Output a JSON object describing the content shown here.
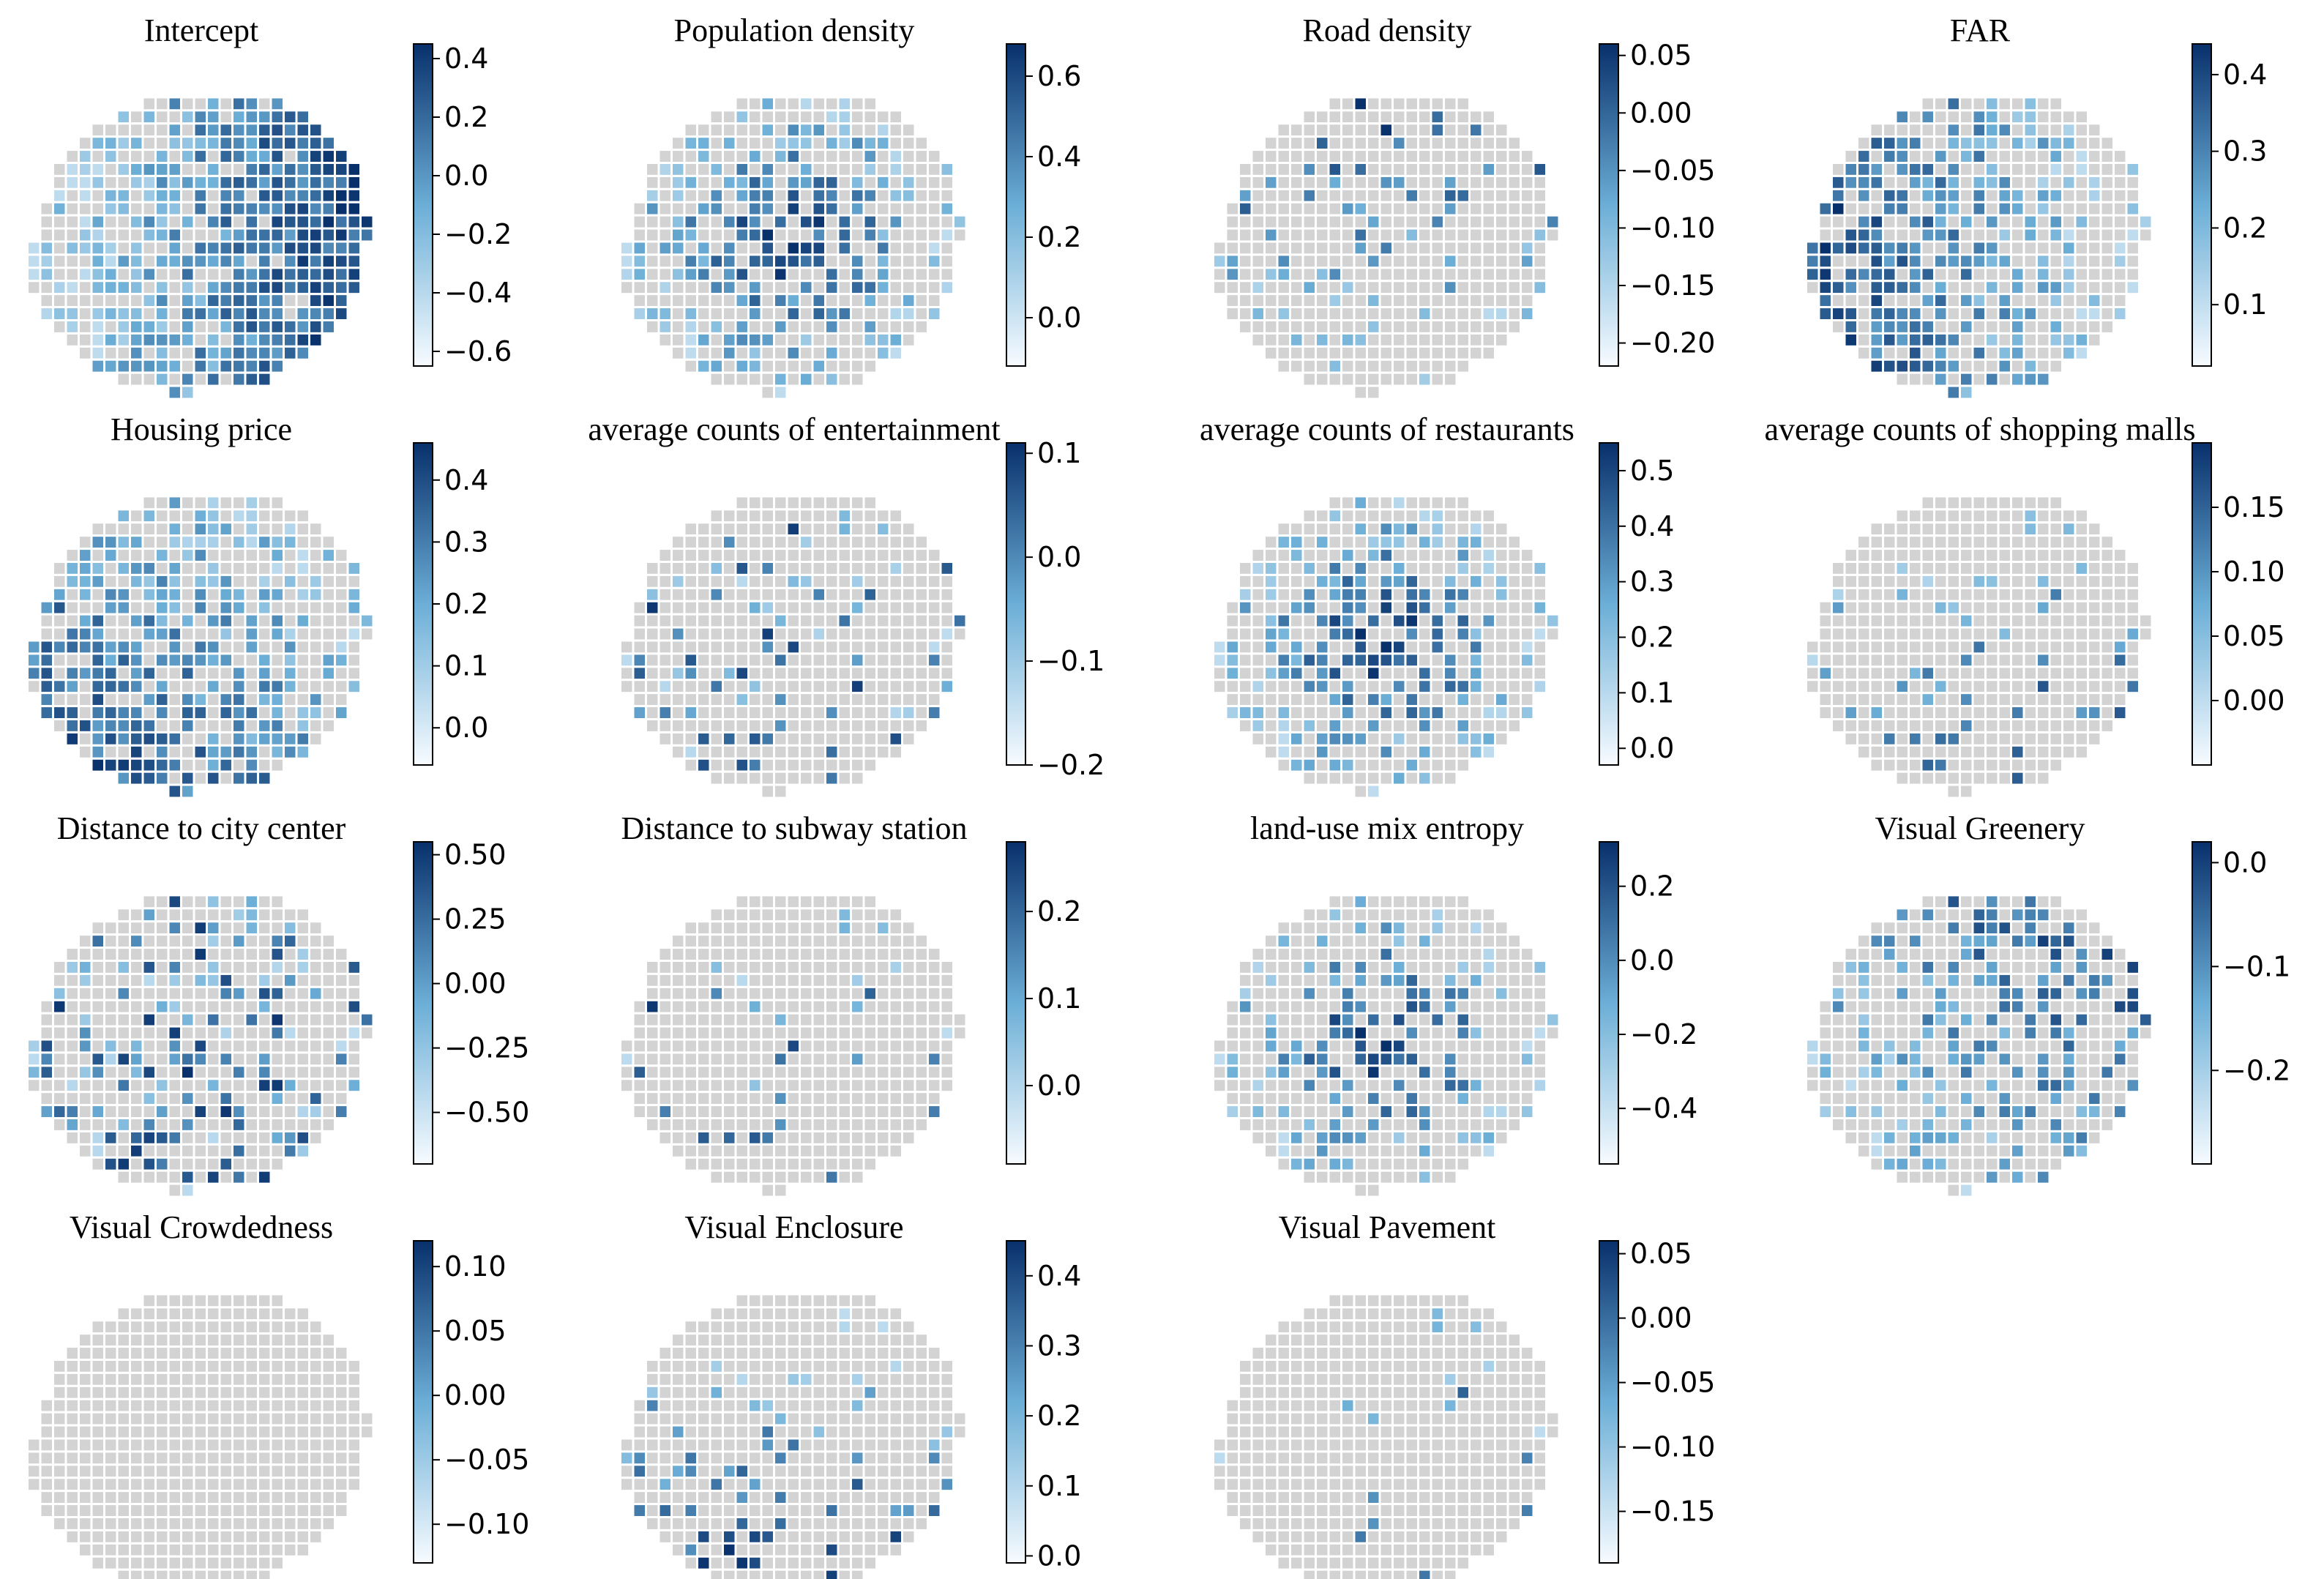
{
  "figure": {
    "description_type": "small-multiples choropleth maps of regression coefficients",
    "colormap": {
      "low": "#f7fbff",
      "mid": "#6baed6",
      "high": "#08306b",
      "insignificant": "#d3d3d3"
    }
  },
  "panels": [
    {
      "title": "Intercept",
      "ticks": [
        "0.4",
        "0.2",
        "0.0",
        "−0.2",
        "−0.4",
        "−0.6"
      ],
      "range": [
        -0.65,
        0.45
      ],
      "sig": 0.72,
      "pattern": "east"
    },
    {
      "title": "Population density",
      "ticks": [
        "0.6",
        "0.4",
        "0.2",
        "0.0"
      ],
      "range": [
        -0.12,
        0.68
      ],
      "sig": 0.45,
      "pattern": "center"
    },
    {
      "title": "Road density",
      "ticks": [
        "0.05",
        "0.00",
        "−0.05",
        "−0.10",
        "−0.15",
        "−0.20"
      ],
      "range": [
        -0.22,
        0.06
      ],
      "sig": 0.14,
      "pattern": "north"
    },
    {
      "title": "FAR",
      "ticks": [
        "0.4",
        "0.3",
        "0.2",
        "0.1"
      ],
      "range": [
        0.02,
        0.44
      ],
      "sig": 0.5,
      "pattern": "west"
    },
    {
      "title": "Housing price",
      "ticks": [
        "0.4",
        "0.3",
        "0.2",
        "0.1",
        "0.0"
      ],
      "range": [
        -0.06,
        0.46
      ],
      "sig": 0.55,
      "pattern": "southwest"
    },
    {
      "title": "average counts of entertainment",
      "ticks": [
        "0.1",
        "0.0",
        "−0.1",
        "−0.2"
      ],
      "range": [
        -0.2,
        0.11
      ],
      "sig": 0.14,
      "pattern": "scatter"
    },
    {
      "title": "average counts of restaurants",
      "ticks": [
        "0.5",
        "0.4",
        "0.3",
        "0.2",
        "0.1",
        "0.0"
      ],
      "range": [
        -0.03,
        0.55
      ],
      "sig": 0.42,
      "pattern": "center"
    },
    {
      "title": "average counts of shopping malls",
      "ticks": [
        "0.15",
        "0.10",
        "0.05",
        "0.00"
      ],
      "range": [
        -0.05,
        0.2
      ],
      "sig": 0.1,
      "pattern": "southeast"
    },
    {
      "title": "Distance to city center",
      "ticks": [
        "0.50",
        "0.25",
        "0.00",
        "−0.25",
        "−0.50"
      ],
      "range": [
        -0.7,
        0.55
      ],
      "sig": 0.3,
      "pattern": "scatter"
    },
    {
      "title": "Distance to subway station",
      "ticks": [
        "0.2",
        "0.1",
        "0.0"
      ],
      "range": [
        -0.09,
        0.28
      ],
      "sig": 0.06,
      "pattern": "scatter"
    },
    {
      "title": "land-use mix entropy",
      "ticks": [
        "0.2",
        "0.0",
        "−0.2",
        "−0.4"
      ],
      "range": [
        -0.55,
        0.32
      ],
      "sig": 0.3,
      "pattern": "center"
    },
    {
      "title": "Visual Greenery",
      "ticks": [
        "0.0",
        "−0.1",
        "−0.2"
      ],
      "range": [
        -0.29,
        0.02
      ],
      "sig": 0.35,
      "pattern": "northeast"
    },
    {
      "title": "Visual Crowdedness",
      "ticks": [
        "0.10",
        "0.05",
        "0.00",
        "−0.05",
        "−0.10"
      ],
      "range": [
        -0.13,
        0.12
      ],
      "sig": 0.0,
      "pattern": "none"
    },
    {
      "title": "Visual  Enclosure",
      "ticks": [
        "0.4",
        "0.3",
        "0.2",
        "0.1",
        "0.0"
      ],
      "range": [
        -0.01,
        0.45
      ],
      "sig": 0.12,
      "pattern": "south"
    },
    {
      "title": "Visual Pavement",
      "ticks": [
        "0.05",
        "0.00",
        "−0.05",
        "−0.10",
        "−0.15"
      ],
      "range": [
        -0.19,
        0.06
      ],
      "sig": 0.03,
      "pattern": "scatter"
    }
  ]
}
